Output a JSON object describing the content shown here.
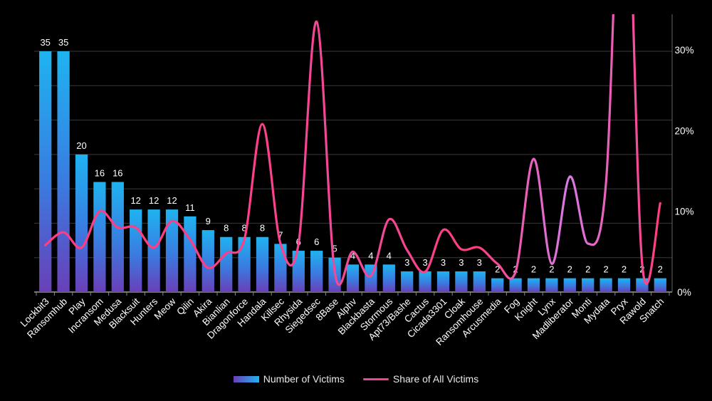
{
  "chart_data": {
    "type": "bar+line",
    "categories": [
      "Lockbit3",
      "Ransomhub",
      "Play",
      "Incransom",
      "Medusa",
      "Blacksuit",
      "Hunters",
      "Meow",
      "Qilin",
      "Akira",
      "Bianlian",
      "Dragonforce",
      "Handala",
      "Killsec",
      "Rhysida",
      "Siegedsec",
      "8Base",
      "Alphv",
      "Blackbasta",
      "Stormous",
      "Apt73/Bashe",
      "Cactus",
      "Cicada3301",
      "Cloak",
      "Ransomhouse",
      "Arcusmedia",
      "Fog",
      "Knight",
      "Lynx",
      "Madliberator",
      "Monti",
      "Mydata",
      "Pryx",
      "Rawold",
      "Snatch"
    ],
    "series": [
      {
        "name": "Number of Victims",
        "type": "bar",
        "axis": "left",
        "values": [
          35,
          35,
          20,
          16,
          16,
          12,
          12,
          12,
          11,
          9,
          8,
          8,
          8,
          7,
          6,
          6,
          5,
          4,
          4,
          4,
          3,
          3,
          3,
          3,
          3,
          2,
          2,
          2,
          2,
          2,
          2,
          2,
          2,
          2,
          2
        ]
      },
      {
        "name": "Share of All Victims",
        "type": "line",
        "axis": "right",
        "unit": "%",
        "values": [
          5.8,
          7.4,
          5.5,
          10,
          8,
          8,
          5.5,
          8.8,
          6.5,
          3,
          4.8,
          6.5,
          20.8,
          6,
          6,
          33.5,
          2.5,
          5,
          2,
          9,
          5.2,
          2.5,
          7.7,
          5.3,
          5.5,
          3.5,
          2.5,
          16.5,
          3.5,
          14.3,
          6,
          13.5,
          60,
          3.5,
          11
        ]
      }
    ],
    "right_axis": {
      "ticks": [
        "0%",
        "10%",
        "20%",
        "30%"
      ],
      "tick_values": [
        0,
        10,
        20,
        30
      ],
      "range": [
        0,
        30
      ]
    },
    "left_axis": {
      "range": [
        0,
        35
      ],
      "gridlines": [
        0,
        5,
        10,
        15,
        20,
        25,
        30,
        35
      ]
    },
    "bar_labels": [
      "35",
      "35",
      "20",
      "16",
      "16",
      "12",
      "12",
      "12",
      "11",
      "9",
      "8",
      "8",
      "8",
      "7",
      "6",
      "6",
      "5",
      "4",
      "4",
      "4",
      "3",
      "3",
      "3",
      "3",
      "3",
      "2",
      "2",
      "2",
      "2",
      "2",
      "2",
      "2",
      "2",
      "2",
      "2"
    ],
    "grid": true,
    "legend_position": "bottom"
  },
  "legend": {
    "bar_label": "Number of Victims",
    "line_label": "Share of All Victims"
  },
  "colors": {
    "background": "#000000",
    "bar_bottom": "#6a3fb8",
    "bar_top": "#1fb3f0",
    "line_pink": "#ff3d7f",
    "line_violet": "#e47ce8",
    "grid": "#3a3a3a",
    "text": "#ffffff"
  }
}
